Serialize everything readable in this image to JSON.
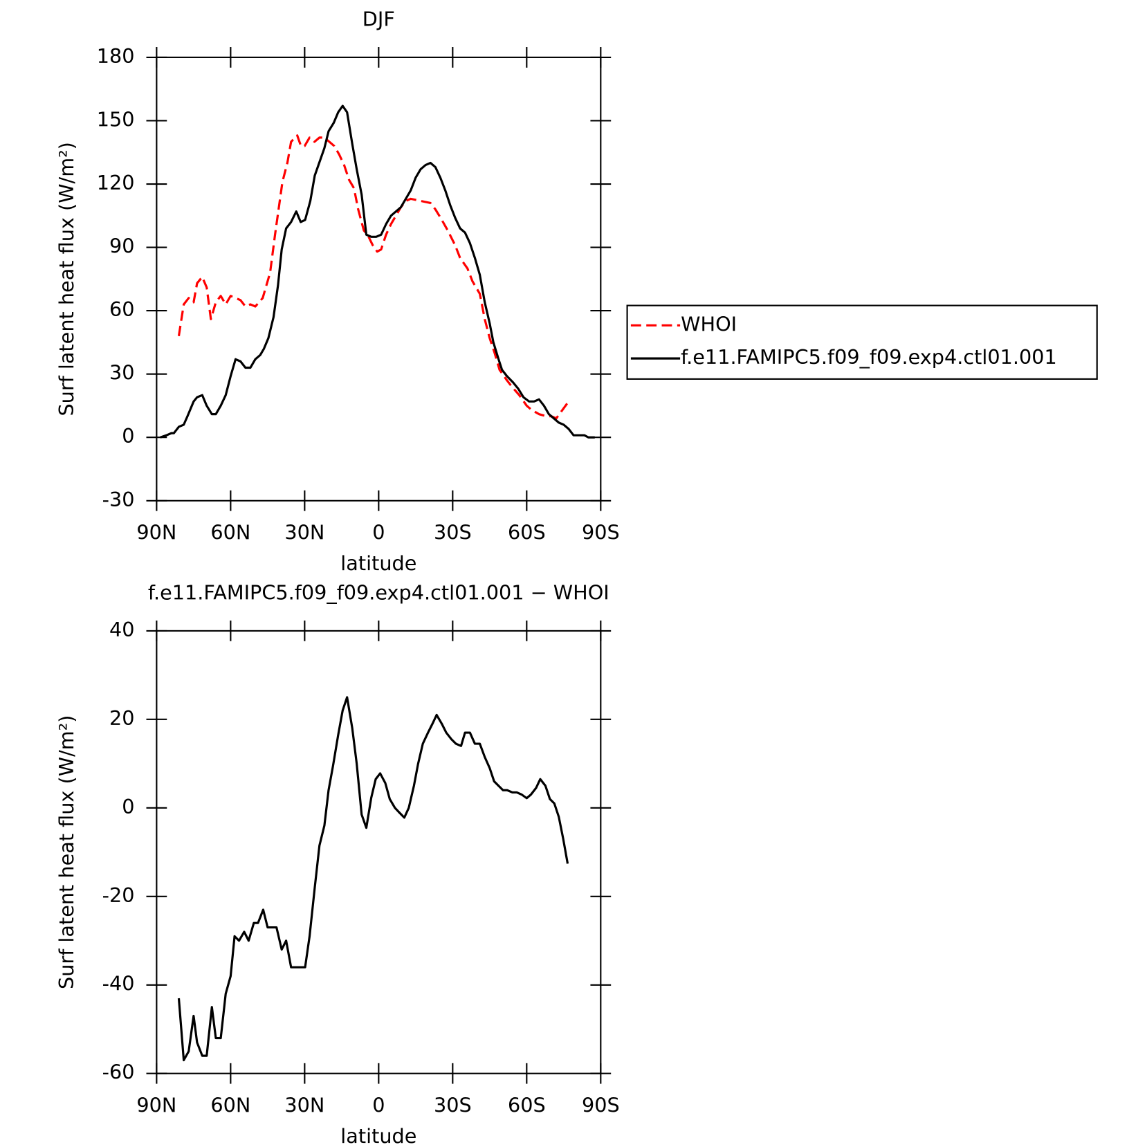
{
  "chart_data": [
    {
      "type": "line",
      "title": "DJF",
      "xlabel": "latitude",
      "ylabel": "Surf latent heat flux (W/m²)",
      "xlim": [
        90,
        -90
      ],
      "ylim": [
        -30,
        180
      ],
      "xticks": [
        {
          "value": 90,
          "label": "90N"
        },
        {
          "value": 60,
          "label": "60N"
        },
        {
          "value": 30,
          "label": "30N"
        },
        0,
        {
          "value": -30,
          "label": "30S"
        },
        {
          "value": -60,
          "label": "60S"
        },
        {
          "value": -90,
          "label": "90S"
        }
      ],
      "yticks": [
        -30,
        0,
        30,
        60,
        90,
        120,
        150,
        180
      ],
      "legend": "right",
      "series": [
        {
          "name": "WHOI",
          "color": "#ff0000",
          "dash": true,
          "x": [
            81,
            79,
            77,
            75,
            73.6,
            71.5,
            69.7,
            68,
            66,
            64,
            62,
            60,
            58,
            56,
            54,
            52,
            50,
            47,
            44,
            42,
            39,
            37,
            35.5,
            33,
            31.5,
            30,
            28,
            26,
            24,
            22,
            20,
            18,
            16,
            14,
            12,
            10,
            8.3,
            6,
            4.5,
            2.4,
            0.6,
            -1,
            -3,
            -5,
            -7,
            -9,
            -11,
            -13,
            -17,
            -21,
            -23,
            -25.6,
            -28,
            -31,
            -33,
            -36,
            -38,
            -41,
            -43,
            -45,
            -47,
            -49,
            -52,
            -54,
            -57,
            -60,
            -62,
            -65,
            -68,
            -70,
            -72,
            -74.5,
            -77
          ],
          "values": [
            48,
            63,
            66,
            64,
            73,
            76,
            71,
            56,
            64,
            67,
            63,
            67,
            66,
            65,
            62,
            63,
            62,
            66,
            78,
            96,
            121,
            130,
            140,
            143,
            138,
            138,
            142,
            140,
            142,
            142,
            140,
            138,
            134,
            129,
            122,
            118,
            108,
            98,
            96,
            91,
            88,
            89,
            96,
            101,
            105,
            109,
            112,
            113,
            112,
            111,
            108,
            103,
            98,
            91,
            85,
            80,
            74,
            68,
            56,
            47,
            40,
            32,
            27,
            24,
            20,
            15,
            13,
            11,
            10,
            10,
            9,
            13,
            17
          ]
        },
        {
          "name": "f.e11.FAMIPC5.f09_f09.exp4.ctl01.001",
          "color": "#000000",
          "dash": false,
          "x": [
            88.5,
            86,
            84,
            83,
            81,
            79,
            77.5,
            75,
            73.6,
            71.5,
            69.7,
            67.6,
            66,
            64,
            62,
            60,
            58,
            56,
            54,
            52,
            50,
            48,
            46.5,
            44.7,
            42.6,
            40.8,
            39.3,
            37.5,
            35.5,
            33.4,
            31.6,
            29.8,
            27.7,
            25.9,
            23.8,
            22,
            20.3,
            18.2,
            16.4,
            14.6,
            12.8,
            10.7,
            8.9,
            6.9,
            5,
            3,
            1,
            -1,
            -3,
            -5,
            -7,
            -9,
            -11,
            -13,
            -15,
            -17,
            -19,
            -21,
            -23,
            -25,
            -27,
            -29,
            -31,
            -33,
            -35,
            -37,
            -39,
            -41,
            -43,
            -45,
            -46.5,
            -48.6,
            -50,
            -52,
            -54.5,
            -56.6,
            -58.7,
            -61,
            -63,
            -65,
            -67,
            -69,
            -71,
            -73,
            -75,
            -77,
            -79,
            -81,
            -83.4,
            -85,
            -87.6
          ],
          "values": [
            0,
            1,
            2,
            2,
            5,
            6,
            10,
            17,
            19,
            20,
            15,
            11,
            11,
            15,
            20,
            29,
            37,
            36,
            33,
            33,
            37,
            39,
            42,
            47,
            57,
            72,
            89,
            99,
            102,
            107,
            102,
            103,
            112,
            124,
            131,
            137,
            145,
            149,
            154,
            157,
            154,
            139,
            127,
            115,
            96,
            95,
            95,
            96,
            101,
            105,
            107,
            109,
            113,
            117,
            123,
            127,
            129,
            130,
            128,
            123,
            117,
            110,
            104,
            99,
            97,
            92,
            85,
            77,
            64,
            54,
            45,
            37,
            32,
            29,
            26,
            23,
            19,
            17,
            17,
            18,
            15,
            11,
            9,
            7,
            6,
            4,
            1,
            1,
            1,
            0,
            0
          ]
        }
      ]
    },
    {
      "type": "line",
      "title": "f.e11.FAMIPC5.f09_f09.exp4.ctl01.001 − WHOI",
      "xlabel": "latitude",
      "ylabel": "Surf latent heat flux (W/m²)",
      "xlim": [
        90,
        -90
      ],
      "ylim": [
        -60,
        40
      ],
      "xticks": [
        {
          "value": 90,
          "label": "90N"
        },
        {
          "value": 60,
          "label": "60N"
        },
        {
          "value": 30,
          "label": "30N"
        },
        0,
        {
          "value": -30,
          "label": "30S"
        },
        {
          "value": -60,
          "label": "60S"
        },
        {
          "value": -90,
          "label": "90S"
        }
      ],
      "yticks": [
        -60,
        -40,
        -20,
        0,
        20,
        40
      ],
      "series": [
        {
          "color": "#000000",
          "dash": false,
          "x": [
            81,
            79,
            77,
            75,
            73.6,
            71.5,
            69.7,
            67.6,
            66,
            64,
            62,
            60,
            58.4,
            56.6,
            54.5,
            52.7,
            50.6,
            48.9,
            46.8,
            45,
            43.2,
            41.4,
            39.3,
            37.5,
            35.5,
            33.4,
            31.6,
            29.8,
            28,
            25.9,
            24,
            22,
            20.3,
            18.5,
            16.4,
            14.6,
            12.8,
            10.7,
            8.9,
            6.9,
            5,
            3,
            1.2,
            -0.6,
            -2.7,
            -4.5,
            -6.6,
            -8.3,
            -10.4,
            -12.2,
            -14.3,
            -16,
            -17.9,
            -20,
            -21.8,
            -23.5,
            -25.6,
            -27.4,
            -29.5,
            -31.3,
            -33.4,
            -35,
            -37,
            -39,
            -41,
            -43,
            -45,
            -46.8,
            -48.6,
            -50.4,
            -52.1,
            -54.2,
            -56,
            -58,
            -60,
            -61.7,
            -63.8,
            -65.5,
            -67.6,
            -69.4,
            -71.2,
            -73,
            -74.8,
            -76.6
          ],
          "values": [
            -43,
            -57,
            -55,
            -47,
            -53,
            -56,
            -56,
            -45,
            -52,
            -52,
            -42,
            -38,
            -29,
            -30,
            -28,
            -30,
            -26,
            -26,
            -23,
            -27,
            -27,
            -27,
            -32,
            -30,
            -36,
            -36,
            -36,
            -36,
            -29,
            -18,
            -8.5,
            -4,
            4,
            9.5,
            16.5,
            22,
            25,
            18,
            10,
            -1.5,
            -4.5,
            2.3,
            6.5,
            7.8,
            5.6,
            2,
            0,
            -1,
            -2.2,
            0,
            5,
            10,
            14.5,
            17,
            19,
            21,
            19,
            17,
            15.5,
            14.5,
            14,
            17,
            17,
            14.5,
            14.5,
            11.5,
            9,
            6,
            5,
            4,
            4,
            3.5,
            3.5,
            3,
            2.2,
            3,
            4.5,
            6.5,
            5,
            2,
            1,
            -2,
            -7,
            -12.6
          ]
        }
      ]
    }
  ]
}
